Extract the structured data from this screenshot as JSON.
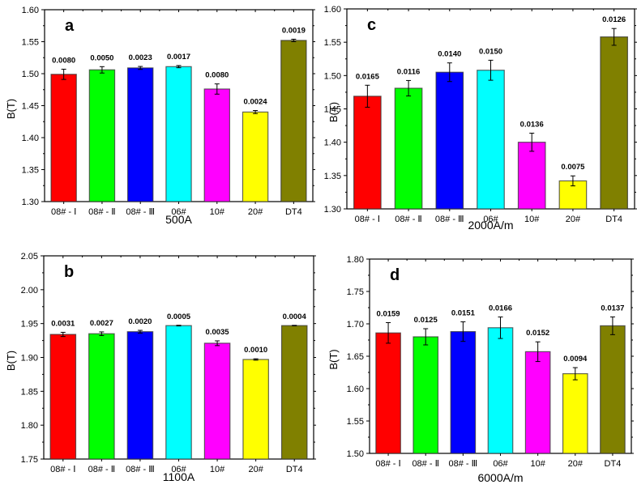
{
  "chart_data": [
    {
      "type": "bar",
      "panel": "a",
      "title": "",
      "xlabel": "500A",
      "ylabel": "B(T)",
      "ylim": [
        1.3,
        1.6
      ],
      "yticks": [
        "1.30",
        "1.35",
        "1.40",
        "1.45",
        "1.50",
        "1.55",
        "1.60"
      ],
      "categories": [
        "08# - I",
        "08# - II",
        "08# - III",
        "06#",
        "10#",
        "20#",
        "DT4"
      ],
      "values": [
        1.499,
        1.506,
        1.509,
        1.511,
        1.476,
        1.44,
        1.552
      ],
      "errors": [
        0.008,
        0.005,
        0.0023,
        0.0017,
        0.008,
        0.0024,
        0.0019
      ],
      "data_labels": [
        "0.0080",
        "0.0050",
        "0.0023",
        "0.0017",
        "0.0080",
        "0.0024",
        "0.0019"
      ],
      "colors": [
        "#ff0000",
        "#00ff00",
        "#0000ff",
        "#00ffff",
        "#ff00ff",
        "#ffff00",
        "#808000"
      ],
      "grid": false
    },
    {
      "type": "bar",
      "panel": "c",
      "title": "",
      "xlabel": "2000A/m",
      "ylabel": "B(T)",
      "ylim": [
        1.3,
        1.6
      ],
      "yticks": [
        "1.30",
        "1.35",
        "1.40",
        "1.45",
        "1.50",
        "1.55",
        "1.60"
      ],
      "categories": [
        "08# - I",
        "08# - II",
        "08# - III",
        "06#",
        "10#",
        "20#",
        "DT4"
      ],
      "values": [
        1.469,
        1.481,
        1.505,
        1.508,
        1.4,
        1.342,
        1.558
      ],
      "errors": [
        0.0165,
        0.0116,
        0.014,
        0.015,
        0.0136,
        0.0075,
        0.0126
      ],
      "data_labels": [
        "0.0165",
        "0.0116",
        "0.0140",
        "0.0150",
        "0.0136",
        "0.0075",
        "0.0126"
      ],
      "colors": [
        "#ff0000",
        "#00ff00",
        "#0000ff",
        "#00ffff",
        "#ff00ff",
        "#ffff00",
        "#808000"
      ],
      "grid": false
    },
    {
      "type": "bar",
      "panel": "b",
      "title": "",
      "xlabel": "1100A",
      "ylabel": "B(T)",
      "ylim": [
        1.75,
        2.05
      ],
      "yticks": [
        "1.75",
        "1.80",
        "1.85",
        "1.90",
        "1.95",
        "2.00",
        "2.05"
      ],
      "categories": [
        "08# - I",
        "08# - II",
        "08# - III",
        "06#",
        "10#",
        "20#",
        "DT4"
      ],
      "values": [
        1.934,
        1.935,
        1.938,
        1.947,
        1.921,
        1.897,
        1.947
      ],
      "errors": [
        0.0031,
        0.0027,
        0.002,
        0.0005,
        0.0035,
        0.001,
        0.0004
      ],
      "data_labels": [
        "0.0031",
        "0.0027",
        "0.0020",
        "0.0005",
        "0.0035",
        "0.0010",
        "0.0004"
      ],
      "colors": [
        "#ff0000",
        "#00ff00",
        "#0000ff",
        "#00ffff",
        "#ff00ff",
        "#ffff00",
        "#808000"
      ],
      "grid": false
    },
    {
      "type": "bar",
      "panel": "d",
      "title": "",
      "xlabel": "6000A/m",
      "ylabel": "B(T)",
      "ylim": [
        1.5,
        1.8
      ],
      "yticks": [
        "1.50",
        "1.55",
        "1.60",
        "1.65",
        "1.70",
        "1.75",
        "1.80"
      ],
      "categories": [
        "08# - I",
        "08# - II",
        "08# - III",
        "06#",
        "10#",
        "20#",
        "DT4"
      ],
      "values": [
        1.686,
        1.68,
        1.688,
        1.694,
        1.657,
        1.623,
        1.697
      ],
      "errors": [
        0.0159,
        0.0125,
        0.0151,
        0.0166,
        0.0152,
        0.0094,
        0.0137
      ],
      "data_labels": [
        "0.0159",
        "0.0125",
        "0.0151",
        "0.0166",
        "0.0152",
        "0.0094",
        "0.0137"
      ],
      "colors": [
        "#ff0000",
        "#00ff00",
        "#0000ff",
        "#00ffff",
        "#ff00ff",
        "#ffff00",
        "#808000"
      ],
      "grid": false
    }
  ]
}
